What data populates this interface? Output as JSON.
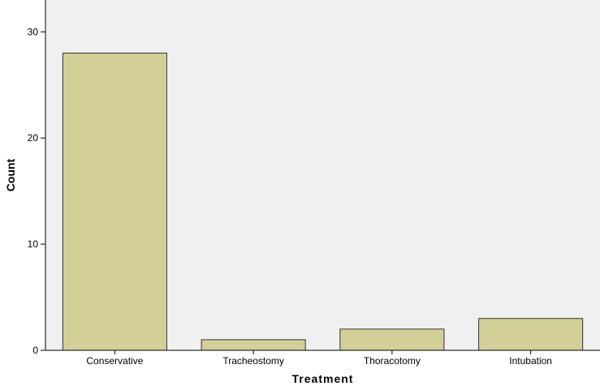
{
  "chart_data": {
    "type": "bar",
    "title": "",
    "xlabel": "Treatment",
    "ylabel": "Count",
    "categories": [
      "Conservative",
      "Tracheostomy",
      "Thoracotomy",
      "Intubation"
    ],
    "values": [
      28,
      1,
      2,
      3
    ],
    "ylim": [
      0,
      33
    ],
    "yticks": [
      0,
      10,
      20,
      30
    ],
    "grid": false,
    "legend": "none",
    "colors": {
      "bar_fill": "#d3cf98",
      "bar_stroke": "#333333",
      "plot_background": "#f0f0f0",
      "axis": "#000000"
    }
  }
}
